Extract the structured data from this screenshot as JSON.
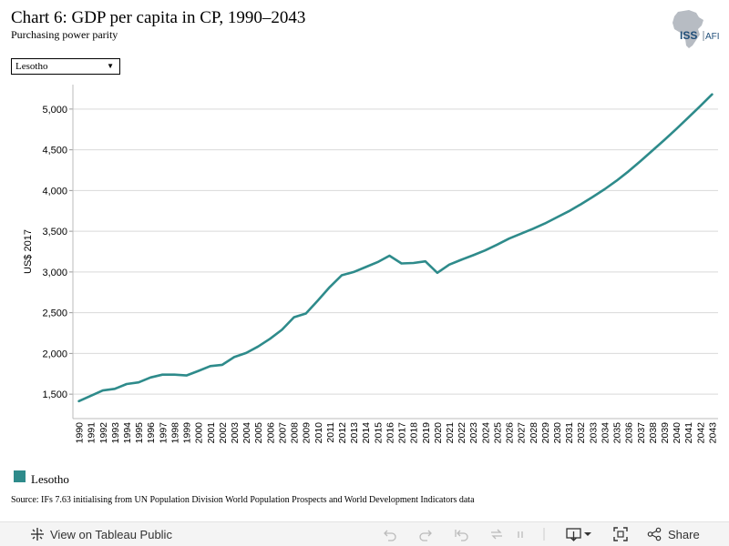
{
  "title": "Chart 6: GDP per capita in CP, 1990–2043",
  "subtitle": "Purchasing power parity",
  "logo": {
    "text_a": "ISS",
    "text_b": "AFI"
  },
  "filter": {
    "selected": "Lesotho"
  },
  "source": "Source: IFs 7.63 initialising from UN Population Division World Population Prospects and World Development Indicators data",
  "toolbar": {
    "view_label": "View on Tableau Public",
    "share_label": "Share"
  },
  "colors": {
    "series": "#2e8b8b",
    "grid": "#d9d9d9"
  },
  "chart_data": {
    "type": "line",
    "ylabel": "US$ 2017",
    "ylim": [
      1200,
      5300
    ],
    "yticks": [
      1500,
      2000,
      2500,
      3000,
      3500,
      4000,
      4500,
      5000
    ],
    "ytick_labels": [
      "1,500",
      "2,000",
      "2,500",
      "3,000",
      "3,500",
      "4,000",
      "4,500",
      "5,000"
    ],
    "x": [
      1990,
      1991,
      1992,
      1993,
      1994,
      1995,
      1996,
      1997,
      1998,
      1999,
      2000,
      2001,
      2002,
      2003,
      2004,
      2005,
      2006,
      2007,
      2008,
      2009,
      2010,
      2011,
      2012,
      2013,
      2014,
      2015,
      2016,
      2017,
      2018,
      2019,
      2020,
      2021,
      2022,
      2023,
      2024,
      2025,
      2026,
      2027,
      2028,
      2029,
      2030,
      2031,
      2032,
      2033,
      2034,
      2035,
      2036,
      2037,
      2038,
      2039,
      2040,
      2041,
      2042,
      2043
    ],
    "series": [
      {
        "name": "Lesotho",
        "values": [
          1415,
          1480,
          1545,
          1565,
          1625,
          1645,
          1705,
          1740,
          1740,
          1730,
          1785,
          1845,
          1860,
          1955,
          2005,
          2085,
          2180,
          2290,
          2445,
          2490,
          2650,
          2815,
          2960,
          3000,
          3060,
          3120,
          3200,
          3105,
          3110,
          3130,
          2990,
          3090,
          3150,
          3205,
          3265,
          3335,
          3410,
          3470,
          3530,
          3595,
          3670,
          3745,
          3830,
          3920,
          4015,
          4120,
          4235,
          4360,
          4490,
          4620,
          4755,
          4895,
          5035,
          5180
        ]
      }
    ]
  }
}
